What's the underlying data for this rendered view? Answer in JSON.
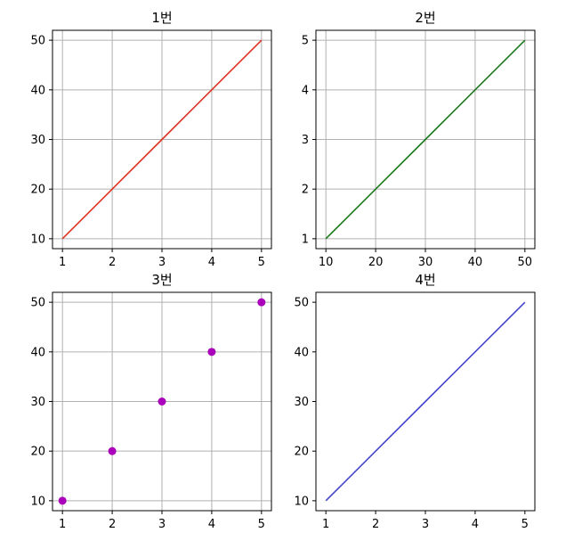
{
  "chart_data": [
    {
      "type": "line",
      "title": "1번",
      "x": [
        1,
        2,
        3,
        4,
        5
      ],
      "y": [
        10,
        20,
        30,
        40,
        50
      ],
      "xlim": [
        0.8,
        5.2
      ],
      "ylim": [
        8,
        52
      ],
      "xticks": [
        1,
        2,
        3,
        4,
        5
      ],
      "yticks": [
        10,
        20,
        30,
        40,
        50
      ],
      "color": "#dd3322",
      "grid": true
    },
    {
      "type": "line",
      "title": "2번",
      "x": [
        10,
        20,
        30,
        40,
        50
      ],
      "y": [
        1,
        2,
        3,
        4,
        5
      ],
      "xlim": [
        8,
        52
      ],
      "ylim": [
        0.8,
        5.2
      ],
      "xticks": [
        10,
        20,
        30,
        40,
        50
      ],
      "yticks": [
        1,
        2,
        3,
        4,
        5
      ],
      "color": "#1a7a1a",
      "grid": true
    },
    {
      "type": "scatter",
      "title": "3번",
      "x": [
        1,
        2,
        3,
        4,
        5
      ],
      "y": [
        10,
        20,
        30,
        40,
        50
      ],
      "xlim": [
        0.8,
        5.2
      ],
      "ylim": [
        8,
        52
      ],
      "xticks": [
        1,
        2,
        3,
        4,
        5
      ],
      "yticks": [
        10,
        20,
        30,
        40,
        50
      ],
      "color": "#aa00bb",
      "grid": true
    },
    {
      "type": "line",
      "title": "4번",
      "x": [
        1,
        2,
        3,
        4,
        5
      ],
      "y": [
        10,
        20,
        30,
        40,
        50
      ],
      "xlim": [
        0.8,
        5.2
      ],
      "ylim": [
        8,
        52
      ],
      "xticks": [
        1,
        2,
        3,
        4,
        5
      ],
      "yticks": [
        10,
        20,
        30,
        40,
        50
      ],
      "color": "#4444cc",
      "grid": false
    }
  ]
}
